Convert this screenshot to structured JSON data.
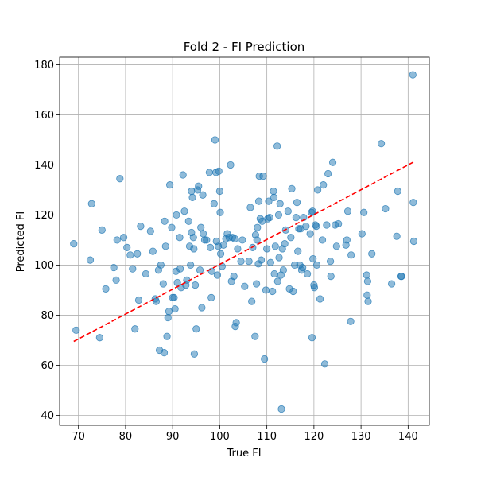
{
  "chart_data": {
    "type": "scatter",
    "title": "Fold 2 - FI Prediction",
    "xlabel": "True FI",
    "ylabel": "Predicted FI",
    "xlim": [
      66,
      144.5
    ],
    "ylim": [
      36,
      183
    ],
    "xticks": [
      70,
      80,
      90,
      100,
      110,
      120,
      130,
      140
    ],
    "yticks": [
      40,
      60,
      80,
      100,
      120,
      140,
      160,
      180
    ],
    "grid": true,
    "point_color": "#1f77b4",
    "point_alpha": 0.5,
    "reference_line": {
      "style": "dashed",
      "color": "#ff0000",
      "x": [
        69,
        141.2
      ],
      "y": [
        69.5,
        141.2
      ]
    },
    "series": [
      {
        "points": [
          [
            69,
            108.5
          ],
          [
            69.5,
            74
          ],
          [
            72.5,
            102
          ],
          [
            72.8,
            124.5
          ],
          [
            74.5,
            71
          ],
          [
            75,
            114
          ],
          [
            75.8,
            90.5
          ],
          [
            77.5,
            99
          ],
          [
            78,
            94
          ],
          [
            78.2,
            110
          ],
          [
            78.8,
            134.5
          ],
          [
            79.6,
            111
          ],
          [
            80.3,
            107
          ],
          [
            81,
            104
          ],
          [
            81.5,
            98.5
          ],
          [
            82,
            74.5
          ],
          [
            82.5,
            104.5
          ],
          [
            82.8,
            86
          ],
          [
            83.2,
            115.5
          ],
          [
            84.3,
            96.5
          ],
          [
            85.3,
            113.5
          ],
          [
            85.8,
            105.5
          ],
          [
            86.3,
            86.5
          ],
          [
            86.5,
            85.5
          ],
          [
            87,
            98
          ],
          [
            87.2,
            66
          ],
          [
            87.5,
            100
          ],
          [
            88,
            92.5
          ],
          [
            88.2,
            65
          ],
          [
            88.3,
            117.5
          ],
          [
            88.5,
            107.5
          ],
          [
            88.8,
            71.5
          ],
          [
            89,
            79
          ],
          [
            89.2,
            81.5
          ],
          [
            89.4,
            132
          ],
          [
            89.8,
            115
          ],
          [
            90,
            87
          ],
          [
            90.3,
            87
          ],
          [
            90.5,
            82.5
          ],
          [
            90.7,
            97.5
          ],
          [
            90.8,
            120
          ],
          [
            91,
            93
          ],
          [
            91.5,
            111
          ],
          [
            91.6,
            98.5
          ],
          [
            91.8,
            91
          ],
          [
            92.2,
            136
          ],
          [
            92.5,
            121.5
          ],
          [
            92.8,
            92
          ],
          [
            93,
            94
          ],
          [
            93.4,
            117.5
          ],
          [
            93.6,
            107.5
          ],
          [
            93.8,
            100
          ],
          [
            94,
            113
          ],
          [
            94,
            129.5
          ],
          [
            94.2,
            127
          ],
          [
            94.4,
            111
          ],
          [
            94.5,
            106.5
          ],
          [
            94.6,
            64.5
          ],
          [
            94.8,
            92
          ],
          [
            95,
            74.5
          ],
          [
            95.3,
            130
          ],
          [
            95.5,
            131.5
          ],
          [
            95.8,
            98
          ],
          [
            96,
            115
          ],
          [
            96.2,
            83
          ],
          [
            96.4,
            128
          ],
          [
            96.5,
            112.5
          ],
          [
            96.8,
            110
          ],
          [
            97.2,
            110
          ],
          [
            97.8,
            137
          ],
          [
            98,
            107
          ],
          [
            98.2,
            87
          ],
          [
            98.3,
            97.5
          ],
          [
            98.8,
            124.5
          ],
          [
            99,
            150
          ],
          [
            99.2,
            137
          ],
          [
            99.3,
            109.5
          ],
          [
            99.5,
            96
          ],
          [
            99.7,
            107.5
          ],
          [
            99.8,
            137.5
          ],
          [
            100,
            129.5
          ],
          [
            100.1,
            121
          ],
          [
            100.2,
            104.5
          ],
          [
            100.5,
            99.5
          ],
          [
            100.8,
            108
          ],
          [
            101.3,
            110.5
          ],
          [
            101.6,
            112.5
          ],
          [
            102,
            111
          ],
          [
            102.3,
            140
          ],
          [
            102.5,
            93.5
          ],
          [
            102.7,
            111
          ],
          [
            103,
            95.5
          ],
          [
            103.2,
            110.5
          ],
          [
            103.3,
            75.5
          ],
          [
            103.5,
            77
          ],
          [
            103.8,
            106.5
          ],
          [
            104.5,
            101.5
          ],
          [
            104.8,
            110
          ],
          [
            105.3,
            91.5
          ],
          [
            106.2,
            101.5
          ],
          [
            106.5,
            123
          ],
          [
            106.8,
            85.5
          ],
          [
            107,
            107
          ],
          [
            107.5,
            71.5
          ],
          [
            107.6,
            112
          ],
          [
            107.8,
            92.5
          ],
          [
            107.9,
            110
          ],
          [
            108,
            115
          ],
          [
            108.2,
            100.5
          ],
          [
            108.3,
            125.5
          ],
          [
            108.4,
            135.5
          ],
          [
            108.6,
            118.5
          ],
          [
            108.8,
            102
          ],
          [
            109,
            117.5
          ],
          [
            109.2,
            135.5
          ],
          [
            109.5,
            62.5
          ],
          [
            109.8,
            90
          ],
          [
            110,
            106.5
          ],
          [
            110.2,
            118.5
          ],
          [
            110.4,
            125.5
          ],
          [
            110.6,
            119
          ],
          [
            110.8,
            101
          ],
          [
            111.2,
            89.5
          ],
          [
            111.4,
            129.5
          ],
          [
            111.5,
            127
          ],
          [
            111.6,
            96.5
          ],
          [
            111.8,
            107.5
          ],
          [
            112.2,
            147.5
          ],
          [
            112.3,
            93.5
          ],
          [
            112.5,
            120
          ],
          [
            112.6,
            103
          ],
          [
            112.8,
            124.5
          ],
          [
            113,
            96
          ],
          [
            113.1,
            42.5
          ],
          [
            113.3,
            106.5
          ],
          [
            113.5,
            98
          ],
          [
            113.8,
            108.5
          ],
          [
            114,
            114
          ],
          [
            114.5,
            121.5
          ],
          [
            114.8,
            90.5
          ],
          [
            115.1,
            111
          ],
          [
            115.3,
            130.5
          ],
          [
            115.6,
            89.5
          ],
          [
            115.9,
            100
          ],
          [
            116.2,
            119
          ],
          [
            116.4,
            125
          ],
          [
            116.6,
            105.5
          ],
          [
            116.8,
            114.5
          ],
          [
            117,
            100
          ],
          [
            117.2,
            114.5
          ],
          [
            117.4,
            98
          ],
          [
            117.6,
            99
          ],
          [
            117.8,
            119
          ],
          [
            118.3,
            115.5
          ],
          [
            118.6,
            96.5
          ],
          [
            119.2,
            112.5
          ],
          [
            119.5,
            121
          ],
          [
            119.6,
            71
          ],
          [
            119.7,
            121.5
          ],
          [
            119.8,
            102.5
          ],
          [
            120,
            92
          ],
          [
            120.1,
            91
          ],
          [
            120.3,
            116
          ],
          [
            120.5,
            115.5
          ],
          [
            120.6,
            100
          ],
          [
            120.8,
            130
          ],
          [
            121.3,
            86.5
          ],
          [
            121.8,
            110
          ],
          [
            122,
            132
          ],
          [
            122.3,
            60.5
          ],
          [
            122.7,
            116
          ],
          [
            123,
            136.5
          ],
          [
            123.5,
            101.5
          ],
          [
            123.6,
            95.5
          ],
          [
            124,
            141
          ],
          [
            124.5,
            116
          ],
          [
            124.8,
            107.5
          ],
          [
            125.2,
            116.5
          ],
          [
            126.8,
            108
          ],
          [
            127,
            110
          ],
          [
            127.2,
            121.5
          ],
          [
            127.8,
            77.5
          ],
          [
            127.9,
            104
          ],
          [
            130.2,
            112.5
          ],
          [
            130.6,
            121
          ],
          [
            131.2,
            96
          ],
          [
            131.3,
            88
          ],
          [
            131.4,
            93.5
          ],
          [
            131.5,
            85.5
          ],
          [
            132.3,
            104.5
          ],
          [
            134.3,
            148.5
          ],
          [
            135.2,
            122.5
          ],
          [
            136.5,
            92.5
          ],
          [
            137.6,
            111.5
          ],
          [
            137.8,
            129.5
          ],
          [
            138.5,
            95.5
          ],
          [
            138.6,
            95.5
          ],
          [
            141,
            176
          ],
          [
            141.1,
            125
          ],
          [
            141.2,
            109.5
          ]
        ]
      }
    ]
  }
}
